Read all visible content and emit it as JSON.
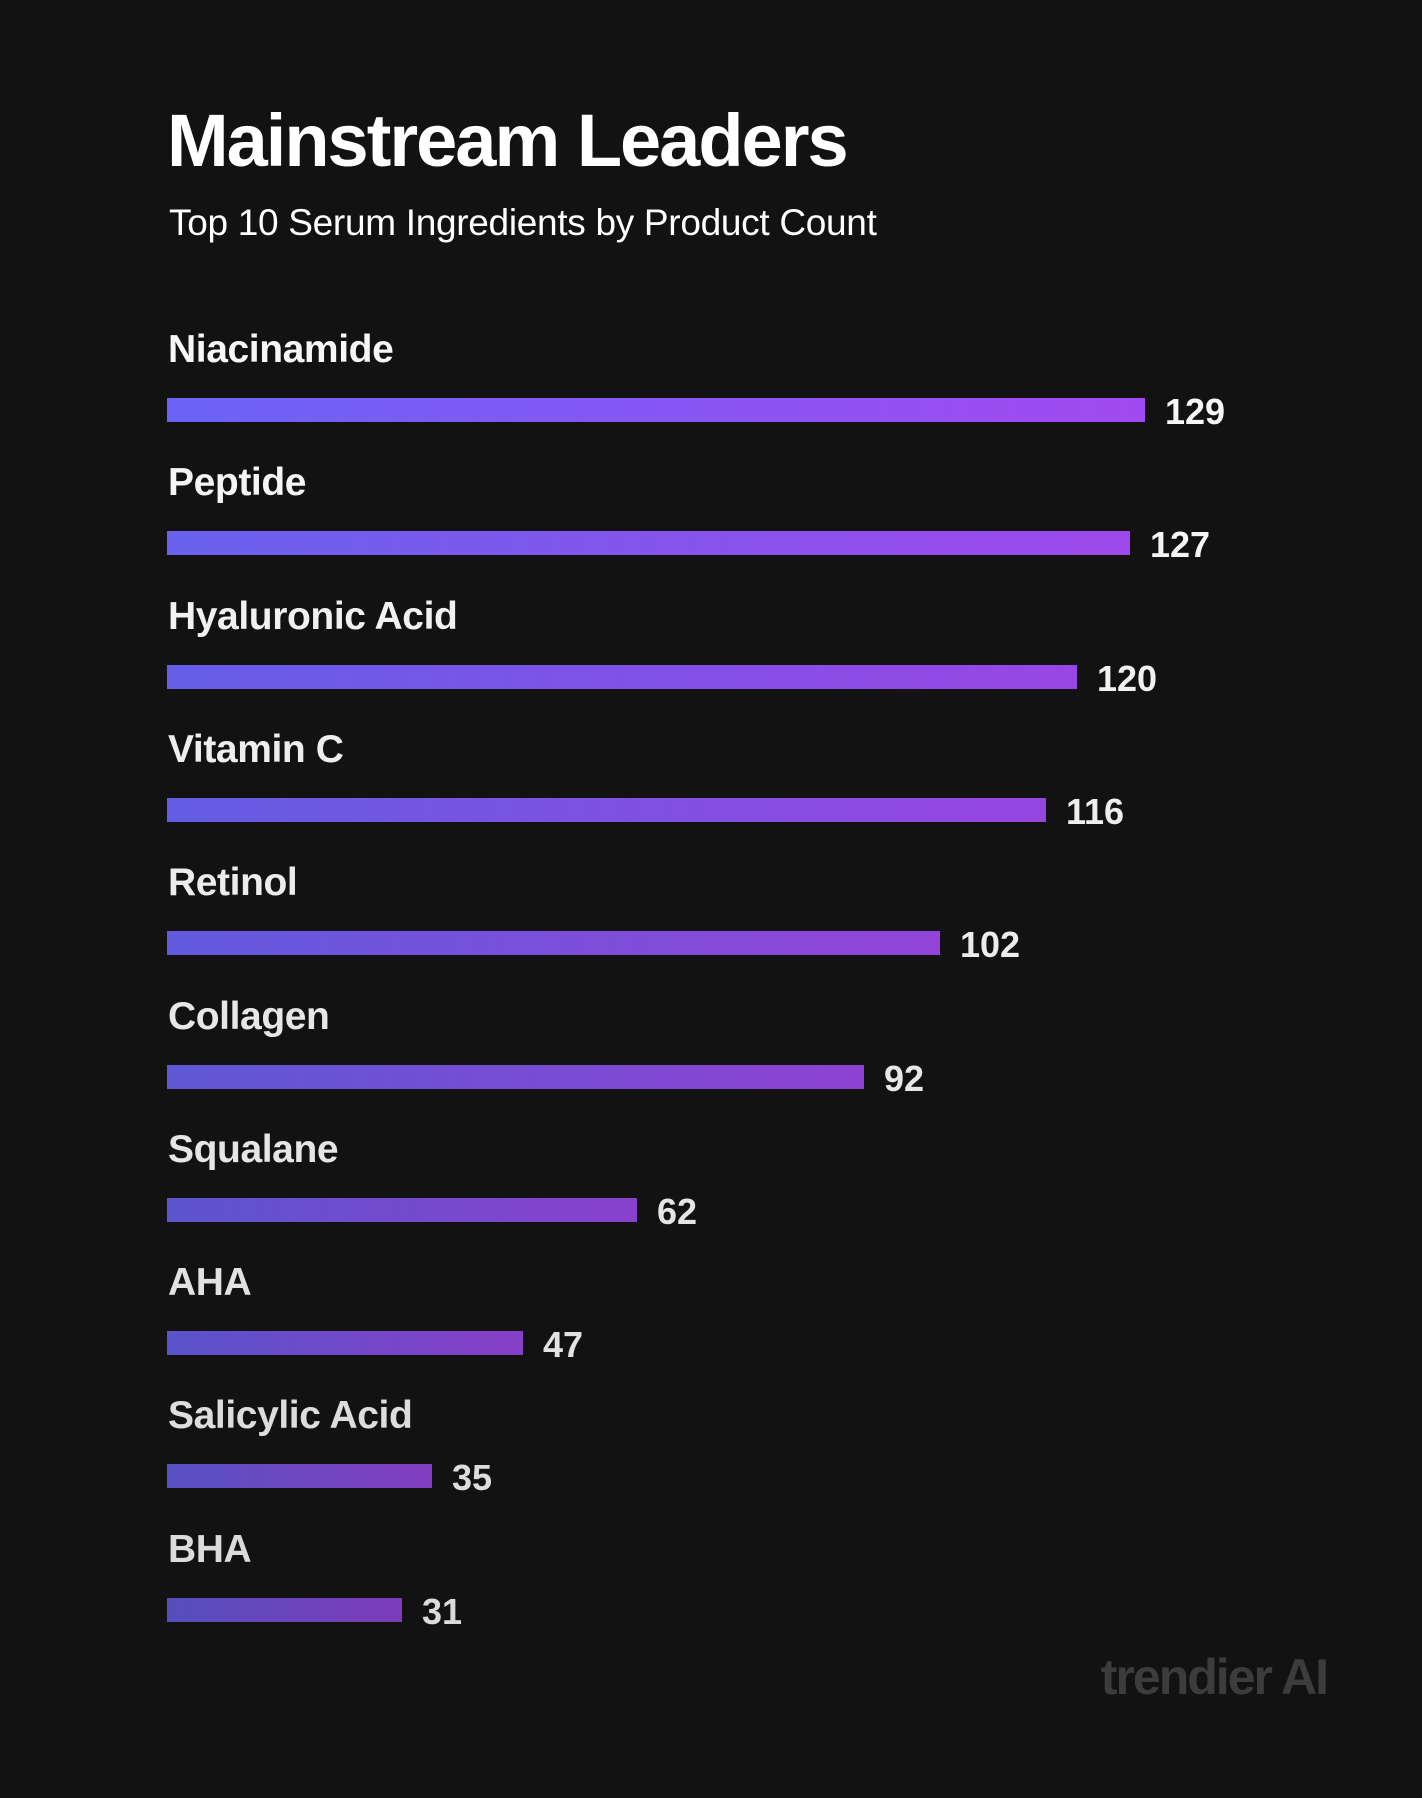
{
  "title": "Mainstream Leaders",
  "subtitle": "Top 10 Serum Ingredients by Product Count",
  "brand": "trendier AI",
  "colors": {
    "background": "#121212",
    "bar_start": "#6b63f5",
    "bar_end": "#a24af2",
    "brand_text": "#3c3c3c"
  },
  "chart_data": {
    "type": "bar",
    "orientation": "horizontal",
    "title": "Mainstream Leaders",
    "subtitle": "Top 10 Serum Ingredients by Product Count",
    "categories": [
      "Niacinamide",
      "Peptide",
      "Hyaluronic Acid",
      "Vitamin C",
      "Retinol",
      "Collagen",
      "Squalane",
      "AHA",
      "Salicylic Acid",
      "BHA"
    ],
    "values": [
      129,
      127,
      120,
      116,
      102,
      92,
      62,
      47,
      35,
      31
    ],
    "value_labels": [
      "129",
      "127",
      "120",
      "116",
      "102",
      "92",
      "62",
      "47",
      "35",
      "31"
    ],
    "xlabel": "",
    "ylabel": "",
    "xlim": [
      0,
      129
    ],
    "grid": false,
    "legend": "none"
  }
}
